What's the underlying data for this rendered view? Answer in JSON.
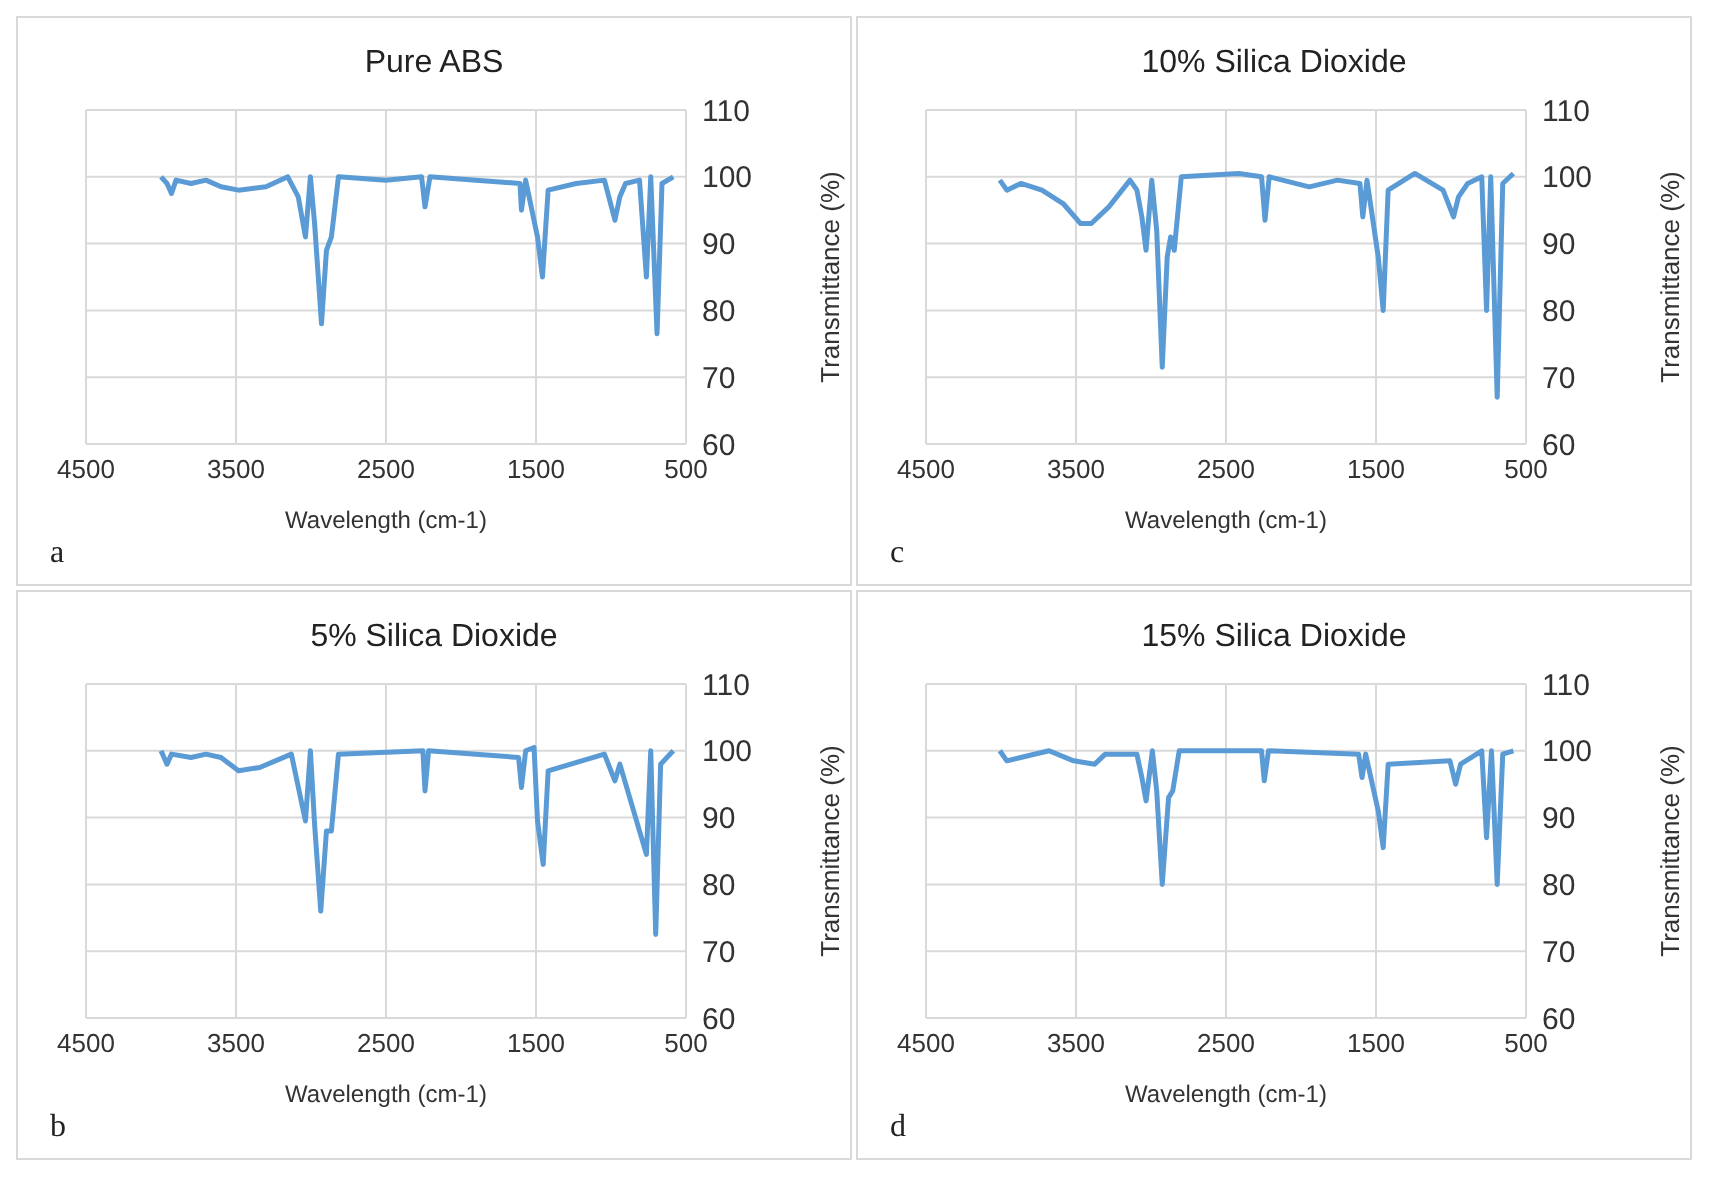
{
  "chart_data": [
    {
      "type": "line",
      "title": "Pure ABS",
      "xlabel": "Wavelength (cm-1)",
      "ylabel": "Transmittance (%)",
      "annotations": [
        "a"
      ],
      "color": "#5b9bd5",
      "grid": true,
      "xlim": [
        4500,
        500
      ],
      "xticks": [
        4500,
        3500,
        2500,
        1500,
        500
      ],
      "ylim": [
        60,
        110
      ],
      "yticks": [
        60,
        70,
        80,
        90,
        100,
        110
      ],
      "x": [
        4000,
        3960,
        3930,
        3900,
        3800,
        3700,
        3600,
        3483,
        3300,
        3155,
        3085,
        3037,
        3004,
        2976,
        2930,
        2897,
        2864,
        2817,
        2500,
        2263,
        2240,
        2207,
        1900,
        1607,
        1597,
        1569,
        1490,
        1457,
        1419,
        1232,
        1044,
        974,
        941,
        903,
        810,
        764,
        735,
        693,
        660,
        585
      ],
      "values": [
        100,
        99,
        97.5,
        99.5,
        99,
        99.5,
        98.5,
        98,
        98.5,
        100,
        97,
        91,
        100,
        93,
        78,
        89,
        91,
        100,
        99.5,
        100,
        95.5,
        100,
        99.5,
        99,
        95,
        99.5,
        91,
        85,
        98,
        99,
        99.5,
        93.5,
        97,
        99,
        99.5,
        85,
        100,
        76.5,
        99,
        100
      ]
    },
    {
      "type": "line",
      "title": "10% Silica Dioxide",
      "xlabel": "Wavelength (cm-1)",
      "ylabel": "Transmittance (%)",
      "annotations": [
        "c"
      ],
      "color": "#5b9bd5",
      "grid": true,
      "xlim": [
        4500,
        500
      ],
      "xticks": [
        4500,
        3500,
        2500,
        1500,
        500
      ],
      "ylim": [
        60,
        110
      ],
      "yticks": [
        60,
        70,
        80,
        90,
        100,
        110
      ],
      "x": [
        4008,
        3961,
        3867,
        3727,
        3586,
        3469,
        3398,
        3281,
        3140,
        3094,
        3061,
        3033,
        2995,
        2962,
        2925,
        2892,
        2869,
        2845,
        2798,
        2414,
        2263,
        2240,
        2212,
        1945,
        1757,
        1607,
        1588,
        1560,
        1485,
        1452,
        1419,
        1241,
        1053,
        983,
        950,
        889,
        795,
        763,
        735,
        692,
        655,
        584
      ],
      "values": [
        99.5,
        98,
        99,
        98,
        96,
        93,
        93,
        95.5,
        99.5,
        98,
        94,
        89,
        99.5,
        92,
        71.5,
        88,
        91,
        89,
        100,
        100.5,
        100,
        93.5,
        100,
        98.5,
        99.5,
        99,
        94,
        99.5,
        88,
        80,
        98,
        100.5,
        98,
        94,
        97,
        99,
        100,
        80,
        100,
        67,
        99,
        100.5
      ]
    },
    {
      "type": "line",
      "title": "5% Silica Dioxide",
      "xlabel": "Wavelength (cm-1)",
      "ylabel": "Transmittance (%)",
      "annotations": [
        "b"
      ],
      "color": "#5b9bd5",
      "grid": true,
      "xlim": [
        4500,
        500
      ],
      "xticks": [
        4500,
        3500,
        2500,
        1500,
        500
      ],
      "ylim": [
        60,
        110
      ],
      "yticks": [
        60,
        70,
        80,
        90,
        100,
        110
      ],
      "x": [
        4000,
        3960,
        3930,
        3800,
        3700,
        3600,
        3483,
        3342,
        3131,
        3037,
        3004,
        2976,
        2935,
        2897,
        2864,
        2817,
        2254,
        2240,
        2216,
        1616,
        1597,
        1569,
        1513,
        1490,
        1452,
        1419,
        1044,
        974,
        941,
        764,
        735,
        702,
        669,
        585
      ],
      "values": [
        100,
        98,
        99.5,
        99,
        99.5,
        99,
        97,
        97.5,
        99.5,
        89.5,
        100,
        89,
        76,
        88,
        88,
        99.5,
        100,
        94,
        100,
        99,
        94.5,
        100,
        100.5,
        89.5,
        83,
        97,
        99.5,
        95.5,
        98,
        84.5,
        100,
        72.5,
        98,
        100
      ]
    },
    {
      "type": "line",
      "title": "15% Silica Dioxide",
      "xlabel": "Wavelength (cm-1)",
      "ylabel": "Transmittance (%)",
      "annotations": [
        "d"
      ],
      "color": "#5b9bd5",
      "grid": true,
      "xlim": [
        4500,
        500
      ],
      "xticks": [
        4500,
        3500,
        2500,
        1500,
        500
      ],
      "ylim": [
        60,
        110
      ],
      "yticks": [
        60,
        70,
        80,
        90,
        100,
        110
      ],
      "x": [
        4008,
        3961,
        3680,
        3516,
        3375,
        3305,
        3094,
        3061,
        3033,
        2991,
        2962,
        2925,
        2883,
        2855,
        2812,
        2263,
        2245,
        2217,
        1616,
        1593,
        1569,
        1485,
        1452,
        1419,
        1007,
        969,
        936,
        795,
        763,
        730,
        692,
        655,
        584
      ],
      "values": [
        100,
        98.5,
        100,
        98.5,
        98,
        99.5,
        99.5,
        96,
        92.5,
        100,
        94,
        80,
        93,
        94,
        100,
        100,
        95.5,
        100,
        99.5,
        96,
        99.5,
        91,
        85.5,
        98,
        98.5,
        95,
        98,
        100,
        87,
        100,
        80,
        99.5,
        100
      ]
    }
  ]
}
